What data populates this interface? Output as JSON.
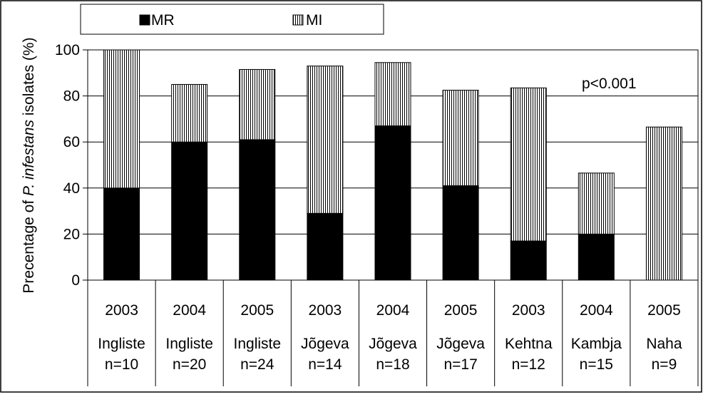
{
  "chart_data": {
    "type": "bar",
    "stacked": true,
    "ylabel_parts": [
      "Precentage of ",
      "P. infestans",
      " isolates (%)"
    ],
    "ylim": [
      0,
      100
    ],
    "yticks": [
      0,
      20,
      40,
      60,
      80,
      100
    ],
    "grid": true,
    "legend_position": "top",
    "annotation": "p<0.001",
    "categories": [
      {
        "year": "2003",
        "site": "Ingliste",
        "n": "n=10"
      },
      {
        "year": "2004",
        "site": "Ingliste",
        "n": "n=20"
      },
      {
        "year": "2005",
        "site": "Ingliste",
        "n": "n=24"
      },
      {
        "year": "2003",
        "site": "Jõgeva",
        "n": "n=14"
      },
      {
        "year": "2004",
        "site": "Jõgeva",
        "n": "n=18"
      },
      {
        "year": "2005",
        "site": "Jõgeva",
        "n": "n=17"
      },
      {
        "year": "2003",
        "site": "Kehtna",
        "n": "n=12"
      },
      {
        "year": "2004",
        "site": "Kambja",
        "n": "n=15"
      },
      {
        "year": "2005",
        "site": "Naha",
        "n": "n=9"
      }
    ],
    "series": [
      {
        "name": "MR",
        "color": "#000000",
        "pattern": "solid",
        "values": [
          40,
          60,
          61,
          29,
          67,
          41,
          17,
          20,
          0
        ]
      },
      {
        "name": "MI",
        "color": "#ffffff",
        "pattern": "vertical-stripes",
        "values": [
          60,
          25,
          30.5,
          64,
          27.5,
          41.5,
          66.5,
          26.5,
          66.5
        ]
      }
    ]
  }
}
